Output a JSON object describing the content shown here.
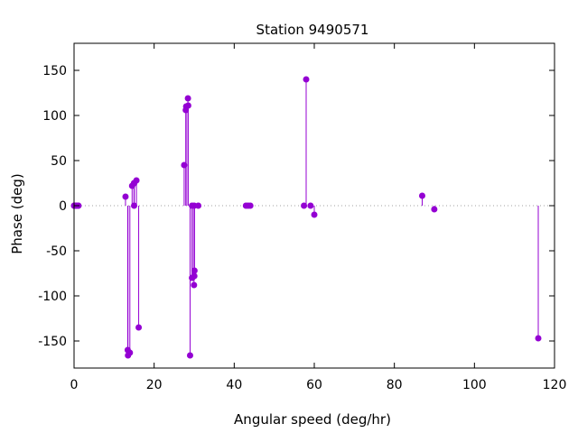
{
  "chart_data": {
    "type": "scatter",
    "title": "Station 9490571",
    "xlabel": "Angular speed (deg/hr)",
    "ylabel": "Phase (deg)",
    "xlim": [
      0,
      120
    ],
    "ylim": [
      -180,
      180
    ],
    "xticks": [
      0,
      20,
      40,
      60,
      80,
      100,
      120
    ],
    "yticks": [
      -150,
      -100,
      -50,
      0,
      50,
      100,
      150
    ],
    "style": "impulses-with-points",
    "zero_line": "dotted",
    "grid": false,
    "legend": "none",
    "color": "#9400d3",
    "points": [
      {
        "x": 0.0,
        "y": 0
      },
      {
        "x": 0.04,
        "y": 0
      },
      {
        "x": 0.08,
        "y": 0
      },
      {
        "x": 0.5,
        "y": 0
      },
      {
        "x": 0.55,
        "y": 0
      },
      {
        "x": 1.02,
        "y": 0
      },
      {
        "x": 1.1,
        "y": 0
      },
      {
        "x": 12.85,
        "y": 10
      },
      {
        "x": 13.4,
        "y": -160
      },
      {
        "x": 13.47,
        "y": -166
      },
      {
        "x": 13.94,
        "y": -163
      },
      {
        "x": 14.5,
        "y": 22
      },
      {
        "x": 14.96,
        "y": 25
      },
      {
        "x": 15.0,
        "y": 0
      },
      {
        "x": 15.04,
        "y": 25
      },
      {
        "x": 15.58,
        "y": 28
      },
      {
        "x": 16.14,
        "y": -135
      },
      {
        "x": 27.5,
        "y": 45
      },
      {
        "x": 27.9,
        "y": 106
      },
      {
        "x": 28.0,
        "y": 110
      },
      {
        "x": 28.44,
        "y": 119
      },
      {
        "x": 28.51,
        "y": 111
      },
      {
        "x": 28.98,
        "y": -166
      },
      {
        "x": 29.46,
        "y": 0
      },
      {
        "x": 29.45,
        "y": -80
      },
      {
        "x": 29.53,
        "y": -80
      },
      {
        "x": 29.96,
        "y": -88
      },
      {
        "x": 30.0,
        "y": 0
      },
      {
        "x": 30.04,
        "y": -78
      },
      {
        "x": 30.08,
        "y": -72
      },
      {
        "x": 31.02,
        "y": 0
      },
      {
        "x": 42.93,
        "y": 0
      },
      {
        "x": 43.48,
        "y": 0
      },
      {
        "x": 44.03,
        "y": 0
      },
      {
        "x": 57.42,
        "y": 0
      },
      {
        "x": 57.97,
        "y": 140
      },
      {
        "x": 59.07,
        "y": 0
      },
      {
        "x": 60.0,
        "y": -10
      },
      {
        "x": 86.95,
        "y": 11
      },
      {
        "x": 89.97,
        "y": -4
      },
      {
        "x": 115.94,
        "y": -147
      }
    ]
  }
}
